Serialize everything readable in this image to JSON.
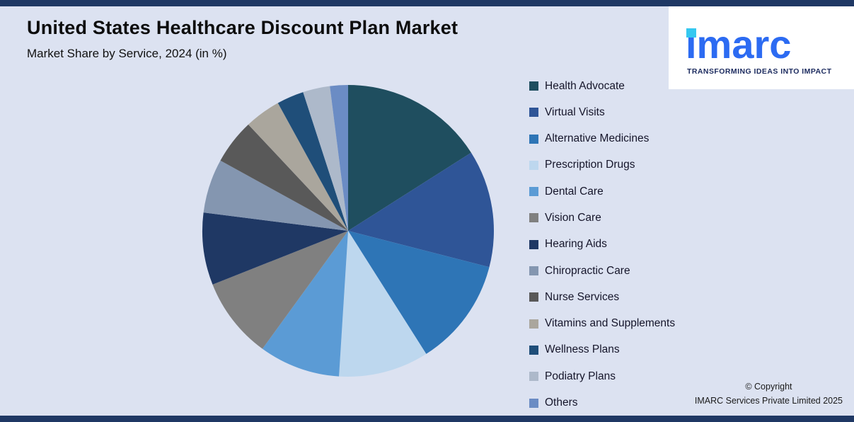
{
  "header": {
    "title": "United States Healthcare Discount Plan Market",
    "subtitle": "Market Share by Service, 2024 (in %)"
  },
  "logo": {
    "brand": "imarc",
    "tagline": "TRANSFORMING IDEAS INTO IMPACT",
    "brand_color": "#2c6bf2",
    "dot_color": "#35c8f0"
  },
  "footer": {
    "copyright_line1": "© Copyright",
    "copyright_line2": "IMARC Services Private Limited 2025"
  },
  "chart_data": {
    "type": "pie",
    "title": "United States Healthcare Discount Plan Market",
    "subtitle": "Market Share by Service, 2024 (in %)",
    "unit": "%",
    "legend_position": "right",
    "start_angle_deg": 0,
    "direction": "clockwise",
    "labels": [
      "Health Advocate",
      "Virtual Visits",
      "Alternative Medicines",
      "Prescription Drugs",
      "Dental Care",
      "Vision Care",
      "Hearing Aids",
      "Chiropractic Care",
      "Nurse Services",
      "Vitamins and Supplements",
      "Wellness Plans",
      "Podiatry Plans",
      "Others"
    ],
    "values": [
      16,
      13,
      12,
      10,
      9,
      9,
      8,
      6,
      5,
      4,
      3,
      3,
      2
    ],
    "colors": [
      "#1f4e5f",
      "#2f5597",
      "#2e75b6",
      "#bdd7ee",
      "#5b9bd5",
      "#808080",
      "#1f3864",
      "#8496b0",
      "#595959",
      "#aaa69d",
      "#1f4e79",
      "#adb9ca",
      "#6b8cc4"
    ]
  }
}
